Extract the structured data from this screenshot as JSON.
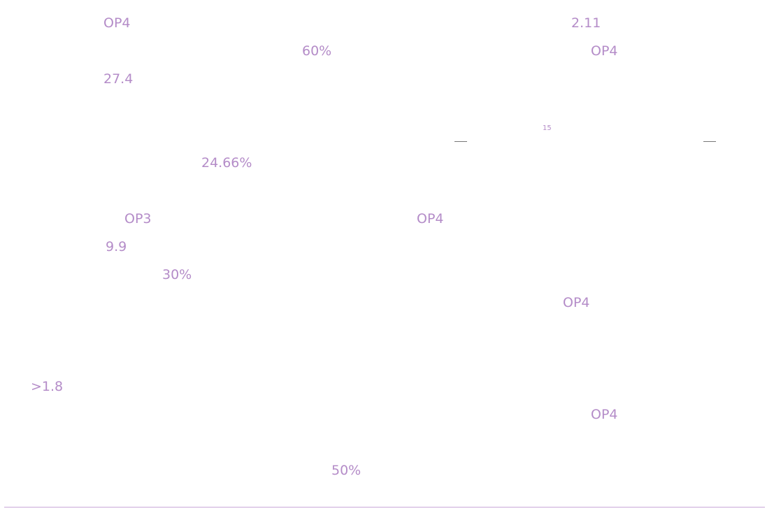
{
  "labels": [
    "OP4",
    "2.11",
    "60%",
    "OP4",
    "27.4",
    "15",
    "24.66%",
    "OP3",
    "OP4",
    "9.9",
    "30%",
    "OP4",
    ">1.8",
    "OP4",
    "50%"
  ]
}
